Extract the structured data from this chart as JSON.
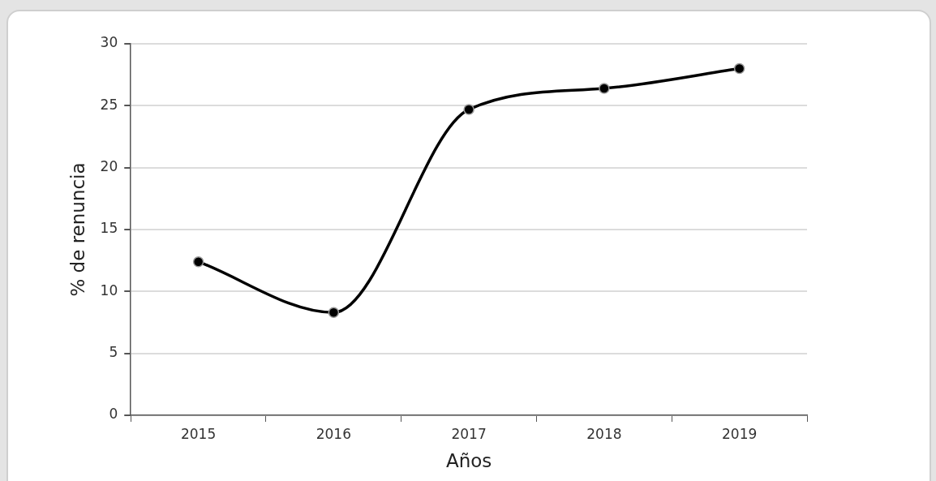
{
  "chart_data": {
    "type": "line",
    "xlabel": "Años",
    "ylabel": "% de renuncia",
    "categories": [
      "2015",
      "2016",
      "2017",
      "2018",
      "2019"
    ],
    "series": [
      {
        "color": "#000000",
        "values": [
          12.4,
          8.3,
          24.7,
          26.4,
          28.0
        ]
      }
    ],
    "ylim": [
      0,
      30
    ],
    "yticks": [
      0,
      5,
      10,
      15,
      20,
      25,
      30
    ],
    "grid": "y",
    "legend": false,
    "marker": "circle",
    "line_style": "solid"
  }
}
